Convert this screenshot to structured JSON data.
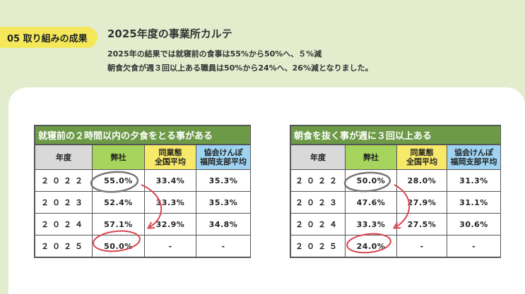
{
  "badge": "05 取り組みの成果",
  "title": "2025年度の事業所カルテ",
  "summary": [
    "2025年の結果では就寝前の食事は55%から50%へ、５%減",
    "朝食欠食が週３回以上ある職員は50%から24%へ、26%減となりました。"
  ],
  "tables": [
    {
      "title": "就寝前の２時間以内の夕食をとる事がある",
      "headers": [
        "年度",
        "弊社",
        "同業態\n全国平均",
        "協会けんぽ\n福岡支部平均"
      ],
      "rows": [
        [
          "２０２２",
          "55.0%",
          "33.4%",
          "35.3%"
        ],
        [
          "２０２３",
          "52.4%",
          "33.3%",
          "35.3%"
        ],
        [
          "２０２４",
          "57.1%",
          "32.9%",
          "34.8%"
        ],
        [
          "２０２５",
          "50.0%",
          "-",
          "-"
        ]
      ]
    },
    {
      "title": "朝食を抜く事が週に３回以上ある",
      "headers": [
        "年度",
        "弊社",
        "同業態\n全国平均",
        "協会けんぽ\n福岡支部平均"
      ],
      "rows": [
        [
          "２０２２",
          "50.0%",
          "28.0%",
          "31.3%"
        ],
        [
          "２０２３",
          "47.6%",
          "27.9%",
          "31.1%"
        ],
        [
          "２０２４",
          "33.3%",
          "27.5%",
          "30.6%"
        ],
        [
          "２０２５",
          "24.0%",
          "-",
          "-"
        ]
      ]
    }
  ]
}
